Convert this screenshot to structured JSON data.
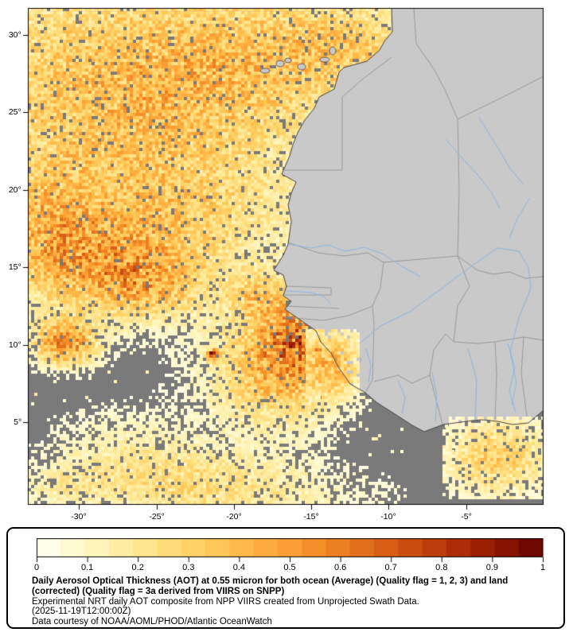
{
  "map": {
    "frame_color": "#000000",
    "ocean_nodata_color": "#7a7a7a",
    "land_color": "#c9c9c9",
    "border_color": "#9a9a9a",
    "coast_color": "#454545",
    "river_color": "#8fb6de",
    "lat_ticks": [
      {
        "label": "30°",
        "value": 30
      },
      {
        "label": "25°",
        "value": 25
      },
      {
        "label": "20°",
        "value": 20
      },
      {
        "label": "15°",
        "value": 15
      },
      {
        "label": "10°",
        "value": 10
      },
      {
        "label": "5°",
        "value": 5
      }
    ],
    "lon_ticks": [
      {
        "label": "-30°",
        "value": -30
      },
      {
        "label": "-25°",
        "value": -25
      },
      {
        "label": "-20°",
        "value": -20
      },
      {
        "label": "-15°",
        "value": -15
      },
      {
        "label": "-10°",
        "value": -10
      },
      {
        "label": "-5°",
        "value": -5
      }
    ]
  },
  "colorbar": {
    "min": 0,
    "max": 1,
    "tick_labels": [
      "0",
      "0.1",
      "0.2",
      "0.3",
      "0.4",
      "0.5",
      "0.6",
      "0.7",
      "0.8",
      "0.9",
      "1"
    ],
    "colors": [
      "#fffee8",
      "#fffad2",
      "#fff4ba",
      "#ffeda3",
      "#ffe58e",
      "#ffdc7a",
      "#ffd268",
      "#ffc758",
      "#ffba4a",
      "#ffad3e",
      "#fb9e33",
      "#f48f2a",
      "#ec7f22",
      "#e26f1b",
      "#d75e15",
      "#ca4d10",
      "#bc3d0c",
      "#ac2d08",
      "#9a1f05",
      "#861303",
      "#6f0801"
    ]
  },
  "legend": {
    "title": "Daily Aerosol Optical Thickness (AOT) at 0.55 micron for both ocean (Average) (Quality flag = 1, 2, 3) and land (corrected) (Quality flag = 3a derived from VIIRS on SNPP)",
    "line2": "Experimental NRT daily AOT composite from NPP VIIRS created from Unprojected Swath Data.",
    "line3": "(2025-11-19T12:00:00Z)",
    "line4": "Data courtesy of NOAA/AOML/PHOD/Atlantic OceanWatch"
  }
}
